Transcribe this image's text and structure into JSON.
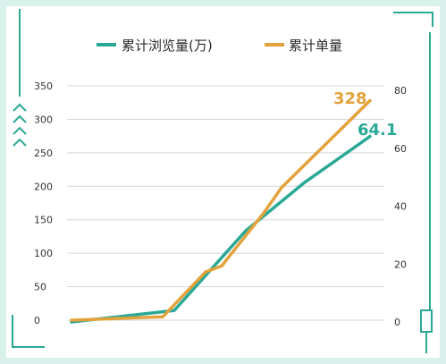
{
  "chart_data": {
    "type": "line",
    "grid": true,
    "legend_position": "top",
    "y_left": {
      "range": [
        0,
        350
      ],
      "ticks": [
        0,
        50,
        100,
        150,
        200,
        250,
        300,
        350
      ]
    },
    "y_right": {
      "range": [
        0,
        80
      ],
      "ticks": [
        0,
        20,
        40,
        60,
        80
      ]
    },
    "series": [
      {
        "name": "累计浏览量(万)",
        "axis": "right",
        "color": "#2aa896",
        "values": [
          0,
          4,
          31.5,
          48,
          64.1
        ],
        "end_label": "64.1"
      },
      {
        "name": "累计单量",
        "axis": "left",
        "color": "#e3a23b",
        "values": [
          0,
          5,
          72,
          81,
          160,
          198,
          328
        ],
        "end_label": "328"
      }
    ]
  },
  "colors": {
    "frame_background": "#d8f1eb",
    "panel": "#ffffff",
    "accent": "#2aa896",
    "grid": "#d6d6d6"
  }
}
